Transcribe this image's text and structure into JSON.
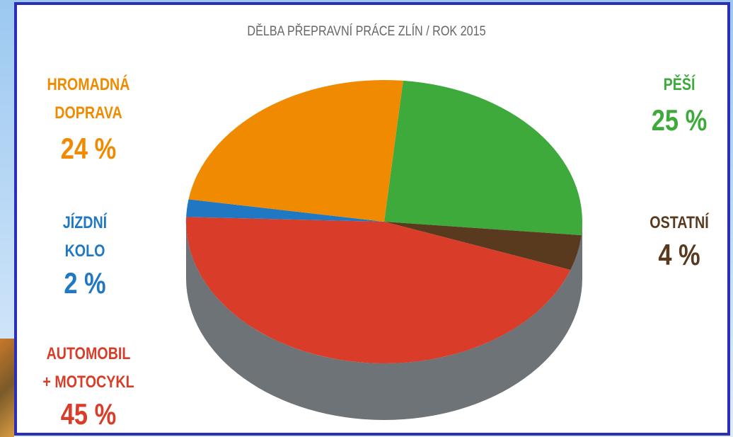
{
  "chart_data": {
    "type": "pie",
    "title": "DĚLBA PŘEPRAVNÍ PRÁCE ZLÍN / ROK 2015",
    "categories": [
      "PĚŠÍ",
      "OSTATNÍ",
      "AUTOMOBIL\n+ MOTOCYKL",
      "JÍZDNÍ\nKOLO",
      "HROMADNÁ\nDOPRAVA"
    ],
    "values": [
      25,
      4,
      45,
      2,
      24
    ],
    "value_labels": [
      "25 %",
      "4 %",
      "45 %",
      "2 %",
      "24 %"
    ],
    "colors": [
      "#3daa3b",
      "#5a3a1e",
      "#d93c28",
      "#1f78c1",
      "#f08a00"
    ]
  }
}
